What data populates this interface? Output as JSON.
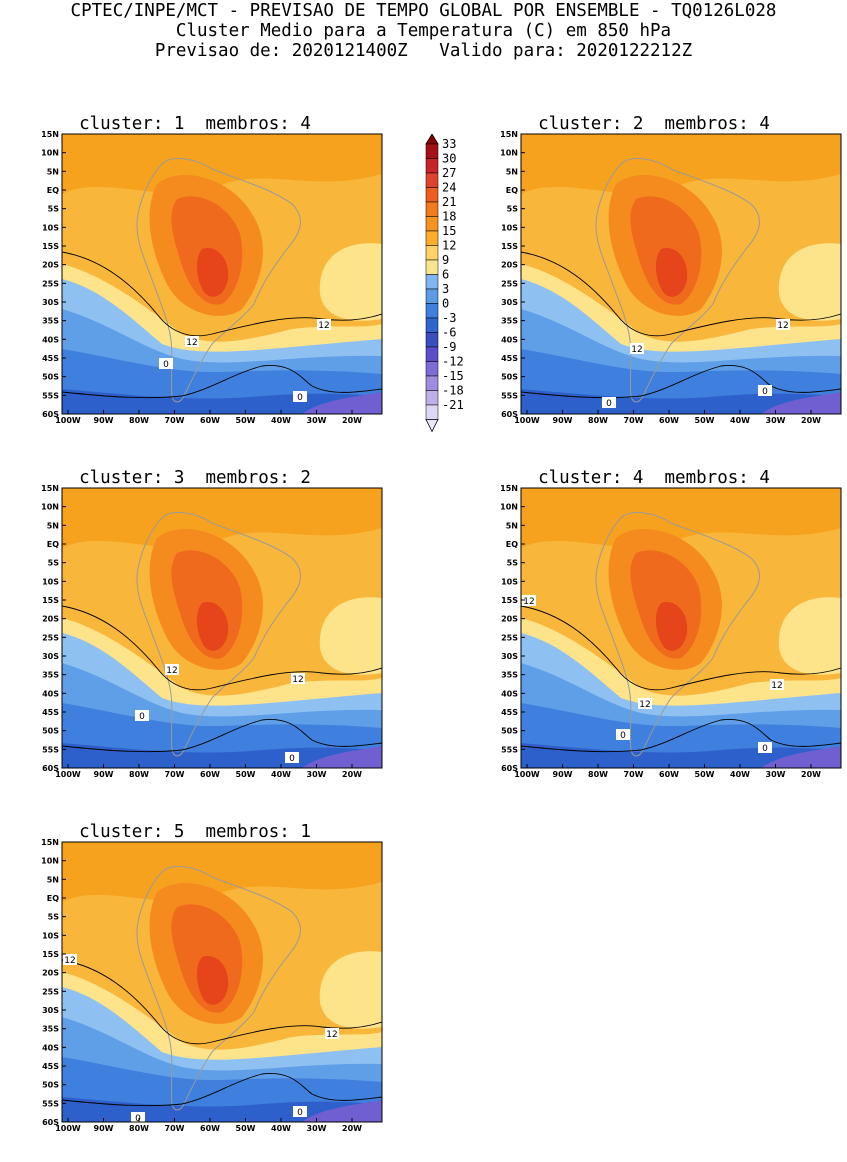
{
  "header": {
    "line1": "CPTEC/INPE/MCT - PREVISAO DE TEMPO GLOBAL POR ENSEMBLE - TQ0126L028",
    "line2": "Cluster Medio para a Temperatura (C) em 850 hPa",
    "line3": "Previsao de: 2020121400Z   Valido para: 2020122212Z"
  },
  "axes": {
    "lat_labels": [
      "15N",
      "10N",
      "5N",
      "EQ",
      "5S",
      "10S",
      "15S",
      "20S",
      "25S",
      "30S",
      "35S",
      "40S",
      "45S",
      "50S",
      "55S",
      "60S"
    ],
    "lon_labels": [
      "100W",
      "90W",
      "80W",
      "70W",
      "60W",
      "50W",
      "40W",
      "30W",
      "20W"
    ]
  },
  "colorbar": {
    "labels": [
      "33",
      "30",
      "27",
      "24",
      "21",
      "18",
      "15",
      "12",
      "9",
      "6",
      "3",
      "0",
      "-3",
      "-6",
      "-9",
      "-12",
      "-15",
      "-18",
      "-21"
    ],
    "colors": [
      "#a50f15",
      "#c8242a",
      "#e0432b",
      "#ef5d1f",
      "#f27a1f",
      "#f7941d",
      "#fbaf2a",
      "#fdd267",
      "#f6e58d",
      "#7fb6ef",
      "#5b9be6",
      "#3f7fdd",
      "#2e65cf",
      "#3b4fc2",
      "#5a4fc9",
      "#7c6cd4",
      "#9e8ddf",
      "#bfb0ea",
      "#ded6f5"
    ],
    "top_color": "#8b0000",
    "bottom_color": "#ece8fa"
  },
  "panels": [
    {
      "title": "cluster: 1  membros: 4",
      "labels": [
        {
          "t": "12"
        },
        {
          "t": "12"
        },
        {
          "t": "0"
        },
        {
          "t": "0"
        }
      ]
    },
    {
      "title": "cluster: 2  membros: 4",
      "labels": [
        {
          "t": "12"
        },
        {
          "t": "12"
        },
        {
          "t": "0"
        },
        {
          "t": "0"
        }
      ]
    },
    {
      "title": "cluster: 3  membros: 2",
      "labels": [
        {
          "t": "12"
        },
        {
          "t": "12"
        },
        {
          "t": "0"
        },
        {
          "t": "0"
        }
      ]
    },
    {
      "title": "cluster: 4  membros: 4",
      "labels": [
        {
          "t": "12"
        },
        {
          "t": "12"
        },
        {
          "t": "12"
        },
        {
          "t": "0"
        },
        {
          "t": "0"
        }
      ]
    },
    {
      "title": "cluster: 5  membros: 1",
      "labels": [
        {
          "t": "12"
        },
        {
          "t": "12"
        },
        {
          "t": "0"
        },
        {
          "t": "0"
        }
      ]
    }
  ]
}
